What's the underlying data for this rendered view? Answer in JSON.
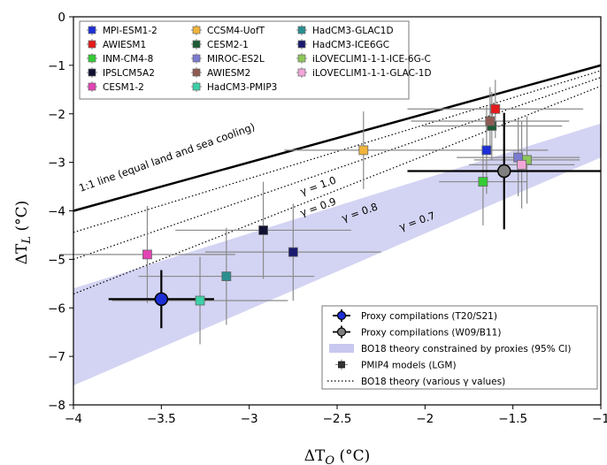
{
  "chart_data": {
    "type": "scatter",
    "xlabel": "ΔT_O (°C)",
    "ylabel": "ΔT_L (°C)",
    "xlim": [
      -4,
      -1
    ],
    "ylim": [
      -8,
      0
    ],
    "x_ticks": [
      "−4",
      "−3.5",
      "−3",
      "−2.5",
      "−2",
      "−1.5",
      "−1"
    ],
    "y_ticks": [
      "−8",
      "−7",
      "−6",
      "−5",
      "−4",
      "−3",
      "−2",
      "−1",
      "0"
    ],
    "grid": false,
    "models": [
      {
        "name": "MPI-ESM1-2",
        "color": "#1c2fd6",
        "x": -1.65,
        "y": -2.75,
        "xerr": 0.35,
        "yerr": 0.9
      },
      {
        "name": "AWIESM1",
        "color": "#e41a1c",
        "x": -1.6,
        "y": -1.9,
        "xerr": 0.5,
        "yerr": 0.6
      },
      {
        "name": "INM-CM4-8",
        "color": "#33cc33",
        "x": -1.67,
        "y": -3.4,
        "xerr": 0.25,
        "yerr": 0.9
      },
      {
        "name": "IPSLCM5A2",
        "color": "#111133",
        "x": -2.92,
        "y": -4.4,
        "xerr": 0.5,
        "yerr": 1.0
      },
      {
        "name": "CESM1-2",
        "color": "#e342b4",
        "x": -3.58,
        "y": -4.9,
        "xerr": 0.5,
        "yerr": 1.0
      },
      {
        "name": "CCSM4-UofT",
        "color": "#f0b43c",
        "x": -2.35,
        "y": -2.75,
        "xerr": 0.45,
        "yerr": 0.8
      },
      {
        "name": "CESM2-1",
        "color": "#1e5a32",
        "x": -1.62,
        "y": -2.25,
        "xerr": 0.4,
        "yerr": 0.7
      },
      {
        "name": "MIROC-ES2L",
        "color": "#7b7bd1",
        "x": -1.47,
        "y": -2.9,
        "xerr": 0.35,
        "yerr": 0.8
      },
      {
        "name": "AWIESM2",
        "color": "#8e5a52",
        "x": -1.63,
        "y": -2.15,
        "xerr": 0.45,
        "yerr": 0.7
      },
      {
        "name": "HadCM3-PMIP3",
        "color": "#3cd0a8",
        "x": -3.28,
        "y": -5.85,
        "xerr": 0.5,
        "yerr": 0.9
      },
      {
        "name": "HadCM3-GLAC1D",
        "color": "#2a8f8f",
        "x": -3.13,
        "y": -5.35,
        "xerr": 0.5,
        "yerr": 1.0
      },
      {
        "name": "HadCM3-ICE6GC",
        "color": "#1a1a6e",
        "x": -2.75,
        "y": -4.85,
        "xerr": 0.5,
        "yerr": 1.0
      },
      {
        "name": "iLOVECLIM1-1-1-ICE-6G-C",
        "color": "#8cc85a",
        "x": -1.42,
        "y": -2.95,
        "xerr": 0.3,
        "yerr": 0.9
      },
      {
        "name": "iLOVECLIM1-1-1-GLAC-1D",
        "color": "#f2a6d8",
        "x": -1.45,
        "y": -3.05,
        "xerr": 0.3,
        "yerr": 0.9
      }
    ],
    "proxies": [
      {
        "name": "Proxy compilations (T20/S21)",
        "color": "#1c2fd6",
        "x": -3.5,
        "y": -5.82,
        "xerr": 0.3,
        "yerr": 0.6
      },
      {
        "name": "Proxy compilations (W09/B11)",
        "color": "#7f7f7f",
        "x": -1.55,
        "y": -3.18,
        "xerr": 0.55,
        "yerr": 1.2
      }
    ],
    "equal_cooling_line": {
      "label": "1:1 line (equal land and sea cooling)",
      "x": [
        -4,
        -1
      ],
      "y": [
        -4,
        -1
      ]
    },
    "theory_lines": [
      {
        "label": "γ = 1.0",
        "gamma": 1.0
      },
      {
        "label": "γ = 0.9",
        "gamma": 0.9
      },
      {
        "label": "γ = 0.8",
        "gamma": 0.8
      },
      {
        "label": "γ = 0.7",
        "gamma": 0.7
      }
    ],
    "ci_band": {
      "x": [
        -4,
        -1
      ],
      "upper": [
        -5.6,
        -2.2
      ],
      "lower": [
        -7.6,
        -2.9
      ],
      "color": "#c8c8f0"
    },
    "legend_models_position": "top-left",
    "legend_proxy_position": "bottom-right"
  },
  "legend_proxy": [
    {
      "key": "t20",
      "label": "Proxy compilations (T20/S21)"
    },
    {
      "key": "w09",
      "label": "Proxy compilations (W09/B11)"
    },
    {
      "key": "band",
      "label": "BO18 theory constrained by proxies (95% CI)"
    },
    {
      "key": "pmip",
      "label": "PMIP4 models (LGM)"
    },
    {
      "key": "theory",
      "label": "BO18 theory (various γ values)"
    }
  ]
}
